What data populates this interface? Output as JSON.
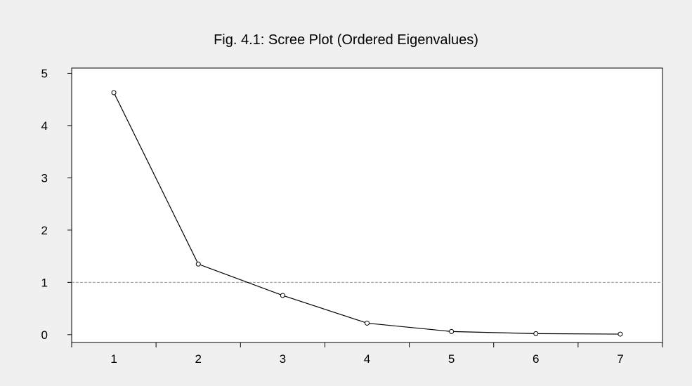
{
  "chart_data": {
    "type": "line",
    "title": "Fig. 4.1: Scree Plot (Ordered Eigenvalues)",
    "xlabel": "",
    "ylabel": "",
    "x": [
      1,
      2,
      3,
      4,
      5,
      6,
      7
    ],
    "values": [
      4.63,
      1.35,
      0.75,
      0.22,
      0.06,
      0.02,
      0.01
    ],
    "xlim": [
      0.5,
      7.5
    ],
    "ylim": [
      -0.15,
      5.1
    ],
    "yticks": [
      0,
      1,
      2,
      3,
      4,
      5
    ],
    "xticks": [
      1,
      2,
      3,
      4,
      5,
      6,
      7
    ],
    "reference_line": {
      "y": 1,
      "style": "dashed"
    },
    "grid": false,
    "legend": "none",
    "colors": {
      "frame_background": "#f0f0f0",
      "plot_background": "#ffffff",
      "line": "#000000",
      "marker_fill": "#ffffff",
      "reference_line": "#9a9a9a"
    }
  }
}
